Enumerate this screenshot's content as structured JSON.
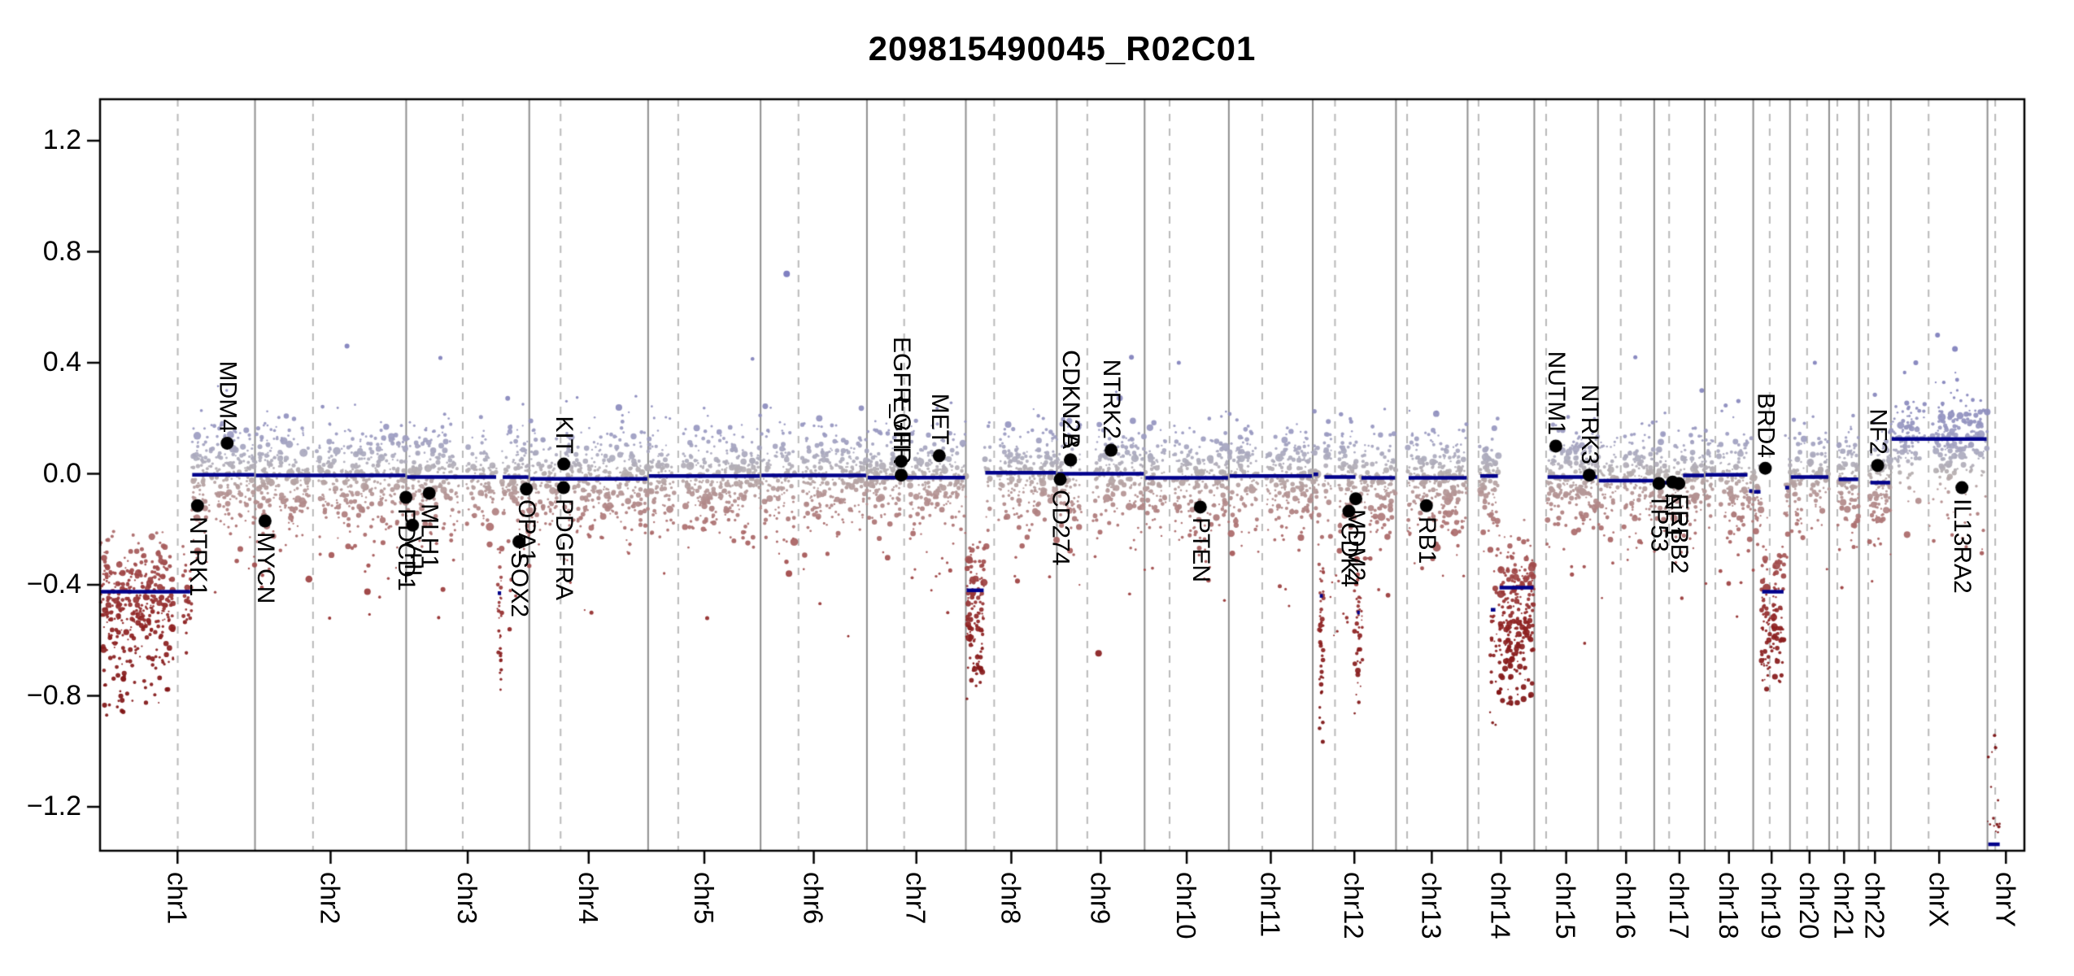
{
  "chart_data": {
    "type": "scatter",
    "title": "209815490045_R02C01",
    "xlabel": "",
    "ylabel": "",
    "ylim": [
      -1.36,
      1.35
    ],
    "yticks": [
      1.2,
      0.8,
      0.4,
      0.0,
      -0.4,
      -0.8,
      -1.2
    ],
    "ytick_labels": [
      "1.2",
      "0.8",
      "0.4",
      "0.0",
      "−0.4",
      "−0.8",
      "−1.2"
    ],
    "grid": {
      "boundary_color": "#8f8f8f",
      "centromere_color": "#b9b9b9",
      "box_color": "#000000",
      "background": "#ffffff"
    },
    "legend": "none",
    "segment_color": "#00008b",
    "gene_dot_color": "#000000",
    "point_color_stops": [
      [
        -0.95,
        "#7a0f10"
      ],
      [
        -0.55,
        "#8e2222"
      ],
      [
        -0.35,
        "#a04747"
      ],
      [
        -0.18,
        "#ad7272"
      ],
      [
        -0.07,
        "#b49595"
      ],
      [
        0.0,
        "#b5aeae"
      ],
      [
        0.05,
        "#aeadbd"
      ],
      [
        0.14,
        "#9b9bc1"
      ],
      [
        0.28,
        "#8585bc"
      ],
      [
        0.9,
        "#6f6fbc"
      ]
    ],
    "chromosomes": [
      {
        "name": "chr1",
        "size": 249.3,
        "centromere": 125.0,
        "data_start": 0,
        "gap": 8,
        "segments": [
          [
            0,
            147,
            -0.425
          ],
          [
            147,
            249.3,
            -0.004
          ]
        ],
        "clusters": [
          [
            5,
            118,
            -0.88,
            -0.52,
            80,
            2.2
          ],
          [
            3,
            120,
            -0.56,
            -0.3,
            50,
            3.0
          ]
        ]
      },
      {
        "name": "chr2",
        "size": 243.2,
        "centromere": 93.3,
        "data_start": 0,
        "gap": 6,
        "segments": [
          [
            0,
            243.2,
            -0.006
          ]
        ],
        "clusters": []
      },
      {
        "name": "chr3",
        "size": 198.0,
        "centromere": 91.0,
        "data_start": 0,
        "gap": 6,
        "segments": [
          [
            0,
            146,
            -0.012
          ],
          [
            154,
            198,
            -0.012
          ],
          [
            146,
            154,
            -0.43
          ]
        ],
        "clusters": [
          [
            147,
            153,
            -0.85,
            -0.38,
            20,
            1.6
          ]
        ]
      },
      {
        "name": "chr4",
        "size": 191.2,
        "centromere": 50.4,
        "data_start": 0,
        "gap": 6,
        "segments": [
          [
            0,
            191.2,
            -0.018
          ]
        ],
        "clusters": []
      },
      {
        "name": "chr5",
        "size": 180.9,
        "centromere": 48.4,
        "data_start": 0,
        "gap": 6,
        "segments": [
          [
            0,
            180.9,
            -0.008
          ]
        ],
        "clusters": []
      },
      {
        "name": "chr6",
        "size": 171.1,
        "centromere": 61.0,
        "data_start": 0,
        "gap": 6,
        "segments": [
          [
            0,
            171.1,
            -0.006
          ]
        ],
        "clusters": []
      },
      {
        "name": "chr7",
        "size": 159.1,
        "centromere": 59.9,
        "data_start": 0,
        "gap": 6,
        "segments": [
          [
            0,
            159.1,
            -0.014
          ]
        ],
        "clusters": []
      },
      {
        "name": "chr8",
        "size": 146.4,
        "centromere": 45.6,
        "data_start": 0,
        "gap": 6,
        "segments": [
          [
            0,
            30,
            -0.42
          ],
          [
            30,
            146.4,
            0.004
          ]
        ],
        "clusters": [
          [
            2,
            28,
            -0.78,
            -0.5,
            45,
            2.6
          ]
        ]
      },
      {
        "name": "chr9",
        "size": 141.2,
        "centromere": 49.0,
        "data_start": 0,
        "gap": 9,
        "segments": [
          [
            0,
            141.2,
            0.0
          ]
        ],
        "clusters": []
      },
      {
        "name": "chr10",
        "size": 135.5,
        "centromere": 40.2,
        "data_start": 0,
        "gap": 6,
        "segments": [
          [
            0,
            135.5,
            -0.015
          ]
        ],
        "clusters": []
      },
      {
        "name": "chr11",
        "size": 135.0,
        "centromere": 53.7,
        "data_start": 0,
        "gap": 6,
        "segments": [
          [
            0,
            135.0,
            -0.008
          ]
        ],
        "clusters": []
      },
      {
        "name": "chr12",
        "size": 133.9,
        "centromere": 35.8,
        "data_start": 0,
        "gap": 5,
        "segments": [
          [
            0,
            10,
            -0.002
          ],
          [
            17.5,
            70,
            -0.012
          ],
          [
            77,
            133.9,
            -0.015
          ],
          [
            10,
            17.5,
            -0.44
          ],
          [
            70,
            77,
            -0.5
          ]
        ],
        "clusters": [
          [
            10,
            18,
            -0.97,
            -0.35,
            30,
            2.2
          ],
          [
            67,
            80,
            -0.88,
            -0.35,
            26,
            2.2
          ],
          [
            30,
            62,
            -0.65,
            -0.35,
            8,
            1.4
          ]
        ]
      },
      {
        "name": "chr13",
        "size": 115.2,
        "centromere": 17.9,
        "data_start": 19,
        "gap": 0,
        "segments": [
          [
            19,
            115.2,
            -0.015
          ]
        ],
        "clusters": []
      },
      {
        "name": "chr14",
        "size": 107.3,
        "centromere": 17.6,
        "data_start": 19,
        "gap": 0,
        "segments": [
          [
            19,
            50,
            -0.008
          ],
          [
            50,
            107.3,
            -0.41
          ],
          [
            36,
            46,
            -0.49
          ]
        ],
        "clusters": [
          [
            50,
            106,
            -0.85,
            -0.52,
            110,
            2.8
          ],
          [
            36,
            47,
            -0.92,
            -0.45,
            20,
            1.5
          ]
        ]
      },
      {
        "name": "chr15",
        "size": 102.5,
        "centromere": 19.0,
        "data_start": 20,
        "gap": 0,
        "segments": [
          [
            20,
            102.5,
            -0.012
          ]
        ],
        "clusters": []
      },
      {
        "name": "chr16",
        "size": 90.4,
        "centromere": 36.6,
        "data_start": 0,
        "gap": 5,
        "segments": [
          [
            0,
            90.4,
            -0.025
          ]
        ],
        "clusters": []
      },
      {
        "name": "chr17",
        "size": 81.2,
        "centromere": 24.0,
        "data_start": 0,
        "gap": 4,
        "segments": [
          [
            0,
            45,
            -0.032
          ],
          [
            45,
            81.2,
            -0.006
          ]
        ],
        "clusters": []
      },
      {
        "name": "chr18",
        "size": 78.1,
        "centromere": 17.2,
        "data_start": 0,
        "gap": 4,
        "segments": [
          [
            0,
            70,
            -0.004
          ],
          [
            70,
            78.1,
            -0.062
          ]
        ],
        "clusters": []
      },
      {
        "name": "chr19",
        "size": 59.1,
        "centromere": 26.5,
        "data_start": 0,
        "gap": 4,
        "segments": [
          [
            0,
            13,
            -0.065
          ],
          [
            13,
            50,
            -0.425
          ],
          [
            50,
            59.1,
            -0.05
          ]
        ],
        "clusters": [
          [
            13,
            49,
            -0.8,
            -0.5,
            55,
            2.4
          ]
        ]
      },
      {
        "name": "chr20",
        "size": 63.0,
        "centromere": 27.5,
        "data_start": 0,
        "gap": 4,
        "segments": [
          [
            0,
            63.0,
            -0.012
          ]
        ],
        "clusters": []
      },
      {
        "name": "chr21",
        "size": 48.1,
        "centromere": 13.2,
        "data_start": 14,
        "gap": 0,
        "segments": [
          [
            14,
            48.1,
            -0.02
          ]
        ],
        "clusters": []
      },
      {
        "name": "chr22",
        "size": 51.3,
        "centromere": 14.7,
        "data_start": 17,
        "gap": 0,
        "segments": [
          [
            17,
            51.3,
            -0.032
          ]
        ],
        "clusters": []
      },
      {
        "name": "chrX",
        "size": 155.3,
        "centromere": 60.6,
        "data_start": 0,
        "gap": 6,
        "density": 2.0,
        "base_sd": 0.075,
        "segments": [
          [
            0,
            155.3,
            0.125
          ]
        ],
        "clusters": [
          [
            55,
            150,
            -0.32,
            -0.1,
            14,
            1.8
          ]
        ]
      },
      {
        "name": "chrY",
        "size": 59.4,
        "centromere": 12.5,
        "data_start": 0,
        "gap": 0,
        "density": 0,
        "segments": [
          [
            0,
            21,
            -1.335
          ]
        ],
        "clusters": [
          [
            0,
            20,
            -1.3,
            -1.24,
            9,
            1.5
          ],
          [
            1,
            19,
            -1.21,
            -0.93,
            7,
            1.3
          ]
        ]
      }
    ],
    "genes": [
      {
        "name": "NTRK1",
        "chrom": "chr1",
        "mb": 156.8,
        "value": -0.115,
        "side": "below"
      },
      {
        "name": "MDM4",
        "chrom": "chr1",
        "mb": 204.5,
        "value": 0.11,
        "side": "above"
      },
      {
        "name": "MYCN",
        "chrom": "chr2",
        "mb": 16.1,
        "value": -0.17,
        "side": "below"
      },
      {
        "name": "PDCD1",
        "chrom": "chr2",
        "mb": 242.8,
        "value": -0.085,
        "side": "below"
      },
      {
        "name": "VHL",
        "chrom": "chr3",
        "mb": 10.2,
        "value": -0.185,
        "side": "below"
      },
      {
        "name": "MLH1",
        "chrom": "chr3",
        "mb": 37.0,
        "value": -0.07,
        "side": "below"
      },
      {
        "name": "SOX2",
        "chrom": "chr3",
        "mb": 181.4,
        "value": -0.245,
        "side": "below"
      },
      {
        "name": "OPA1",
        "chrom": "chr3",
        "mb": 193.3,
        "value": -0.055,
        "side": "below"
      },
      {
        "name": "PDGFRA",
        "chrom": "chr4",
        "mb": 55.1,
        "value": -0.05,
        "side": "below"
      },
      {
        "name": "KIT",
        "chrom": "chr4",
        "mb": 55.5,
        "value": 0.035,
        "side": "above"
      },
      {
        "name": "EGFR",
        "chrom": "chr7",
        "mb": 55.1,
        "value": -0.005,
        "side": "above"
      },
      {
        "name": "EGFR_vIII",
        "chrom": "chr7",
        "mb": 55.2,
        "value": 0.045,
        "side": "above"
      },
      {
        "name": "MET",
        "chrom": "chr7",
        "mb": 116.3,
        "value": 0.065,
        "side": "above"
      },
      {
        "name": "CD274",
        "chrom": "chr9",
        "mb": 5.4,
        "value": -0.02,
        "side": "below"
      },
      {
        "name": "CDKN2A",
        "chrom": "chr9",
        "mb": 21.97,
        "value": 0.05,
        "side": "above"
      },
      {
        "name": "CDKN2B",
        "chrom": "chr9",
        "mb": 22.0,
        "value": 0.05,
        "side": "above"
      },
      {
        "name": "NTRK2",
        "chrom": "chr9",
        "mb": 87.3,
        "value": 0.085,
        "side": "above"
      },
      {
        "name": "PTEN",
        "chrom": "chr10",
        "mb": 89.6,
        "value": -0.12,
        "side": "below"
      },
      {
        "name": "CDK4",
        "chrom": "chr12",
        "mb": 58.1,
        "value": -0.135,
        "side": "below"
      },
      {
        "name": "MDM2",
        "chrom": "chr12",
        "mb": 69.2,
        "value": -0.09,
        "side": "below"
      },
      {
        "name": "RB1",
        "chrom": "chr13",
        "mb": 48.9,
        "value": -0.115,
        "side": "below"
      },
      {
        "name": "NUTM1",
        "chrom": "chr15",
        "mb": 34.6,
        "value": 0.1,
        "side": "above"
      },
      {
        "name": "NTRK3",
        "chrom": "chr15",
        "mb": 88.4,
        "value": -0.005,
        "side": "above"
      },
      {
        "name": "TP53",
        "chrom": "chr17",
        "mb": 7.6,
        "value": -0.035,
        "side": "below"
      },
      {
        "name": "NF1",
        "chrom": "chr17",
        "mb": 29.5,
        "value": -0.03,
        "side": "below"
      },
      {
        "name": "ERBB2",
        "chrom": "chr17",
        "mb": 39.7,
        "value": -0.035,
        "side": "below"
      },
      {
        "name": "BRD4",
        "chrom": "chr19",
        "mb": 19.4,
        "value": 0.02,
        "side": "above"
      },
      {
        "name": "NF2",
        "chrom": "chr22",
        "mb": 30.0,
        "value": 0.03,
        "side": "above"
      },
      {
        "name": "IL13RA2",
        "chrom": "chrX",
        "mb": 114.2,
        "value": -0.05,
        "side": "below"
      }
    ],
    "outliers": [
      {
        "chrom": "chr6",
        "mb": 42,
        "value": 0.72,
        "r": 4
      },
      {
        "chrom": "chr2",
        "mb": 148,
        "value": 0.46,
        "r": 3
      },
      {
        "chrom": "chr5",
        "mb": 95,
        "value": -0.52,
        "r": 2.5
      },
      {
        "chrom": "chr9",
        "mb": 120,
        "value": 0.42,
        "r": 3
      },
      {
        "chrom": "chrX",
        "mb": 75,
        "value": 0.5,
        "r": 3
      },
      {
        "chrom": "chrX",
        "mb": 103,
        "value": 0.45,
        "r": 3.5
      },
      {
        "chrom": "chrX",
        "mb": 40,
        "value": 0.4,
        "r": 3
      },
      {
        "chrom": "chr4",
        "mb": 100,
        "value": -0.5,
        "r": 2.5
      },
      {
        "chrom": "chr10",
        "mb": 55,
        "value": 0.4,
        "r": 2.5
      },
      {
        "chrom": "chr16",
        "mb": 60,
        "value": 0.42,
        "r": 2.5
      },
      {
        "chrom": "chr20",
        "mb": 40,
        "value": 0.4,
        "r": 2.5
      },
      {
        "chrom": "chr2",
        "mb": 120,
        "value": -0.52,
        "r": 2
      },
      {
        "chrom": "chr7",
        "mb": 130,
        "value": -0.5,
        "r": 2
      }
    ]
  }
}
